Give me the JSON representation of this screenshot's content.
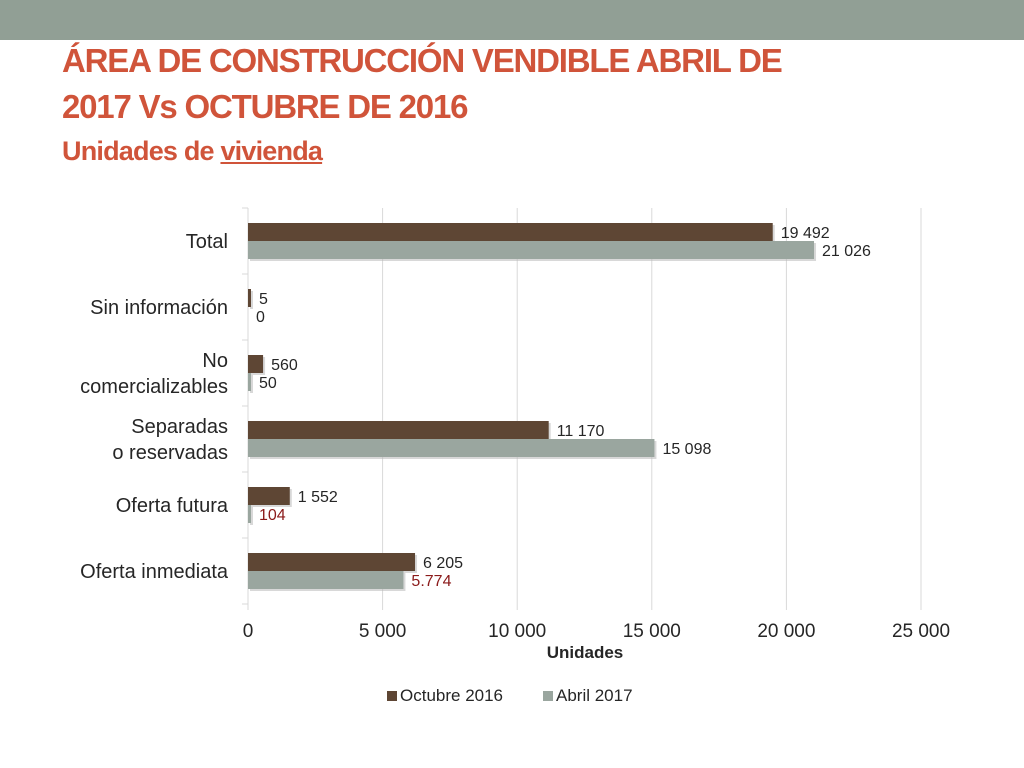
{
  "slide": {
    "title_line1": "ÁREA DE CONSTRUCCIÓN VENDIBLE ABRIL DE",
    "title_line2": "2017 Vs OCTUBRE DE 2016",
    "subtitle_part1": "Unidades de ",
    "subtitle_part2": "vivienda"
  },
  "colors": {
    "band": "#919f95",
    "title": "#d0543a",
    "octubre": "#5e4634",
    "abril": "#9aa69f",
    "label_red": "#8b1a1a",
    "label_default": "#262626",
    "grid": "#d9d9d9"
  },
  "chart_data": {
    "type": "bar",
    "orientation": "horizontal",
    "categories": [
      [
        "Total"
      ],
      [
        "Sin información"
      ],
      [
        "No",
        "comercializables"
      ],
      [
        "Separadas",
        "o reservadas"
      ],
      [
        "Oferta futura"
      ],
      [
        "Oferta inmediata"
      ]
    ],
    "series": [
      {
        "name": "Octubre 2016",
        "values": [
          19492,
          5,
          560,
          11170,
          1552,
          6205
        ],
        "labels": [
          "19 492",
          "5",
          "560",
          "11 170",
          "1 552",
          "6 205"
        ]
      },
      {
        "name": "Abril 2017",
        "values": [
          21026,
          0,
          50,
          15098,
          104,
          5774
        ],
        "labels": [
          "21 026",
          "0",
          "50",
          "15 098",
          "104",
          "5.774"
        ],
        "red_labels": [
          false,
          false,
          false,
          false,
          true,
          true
        ]
      }
    ],
    "xlim": [
      0,
      25000
    ],
    "xticks": [
      0,
      5000,
      10000,
      15000,
      20000,
      25000
    ],
    "xtick_labels": [
      "0",
      "5 000",
      "10 000",
      "15 000",
      "20 000",
      "25 000"
    ],
    "xlabel": "Unidades",
    "ylabel": "",
    "grid": true,
    "legend_position": "bottom"
  }
}
